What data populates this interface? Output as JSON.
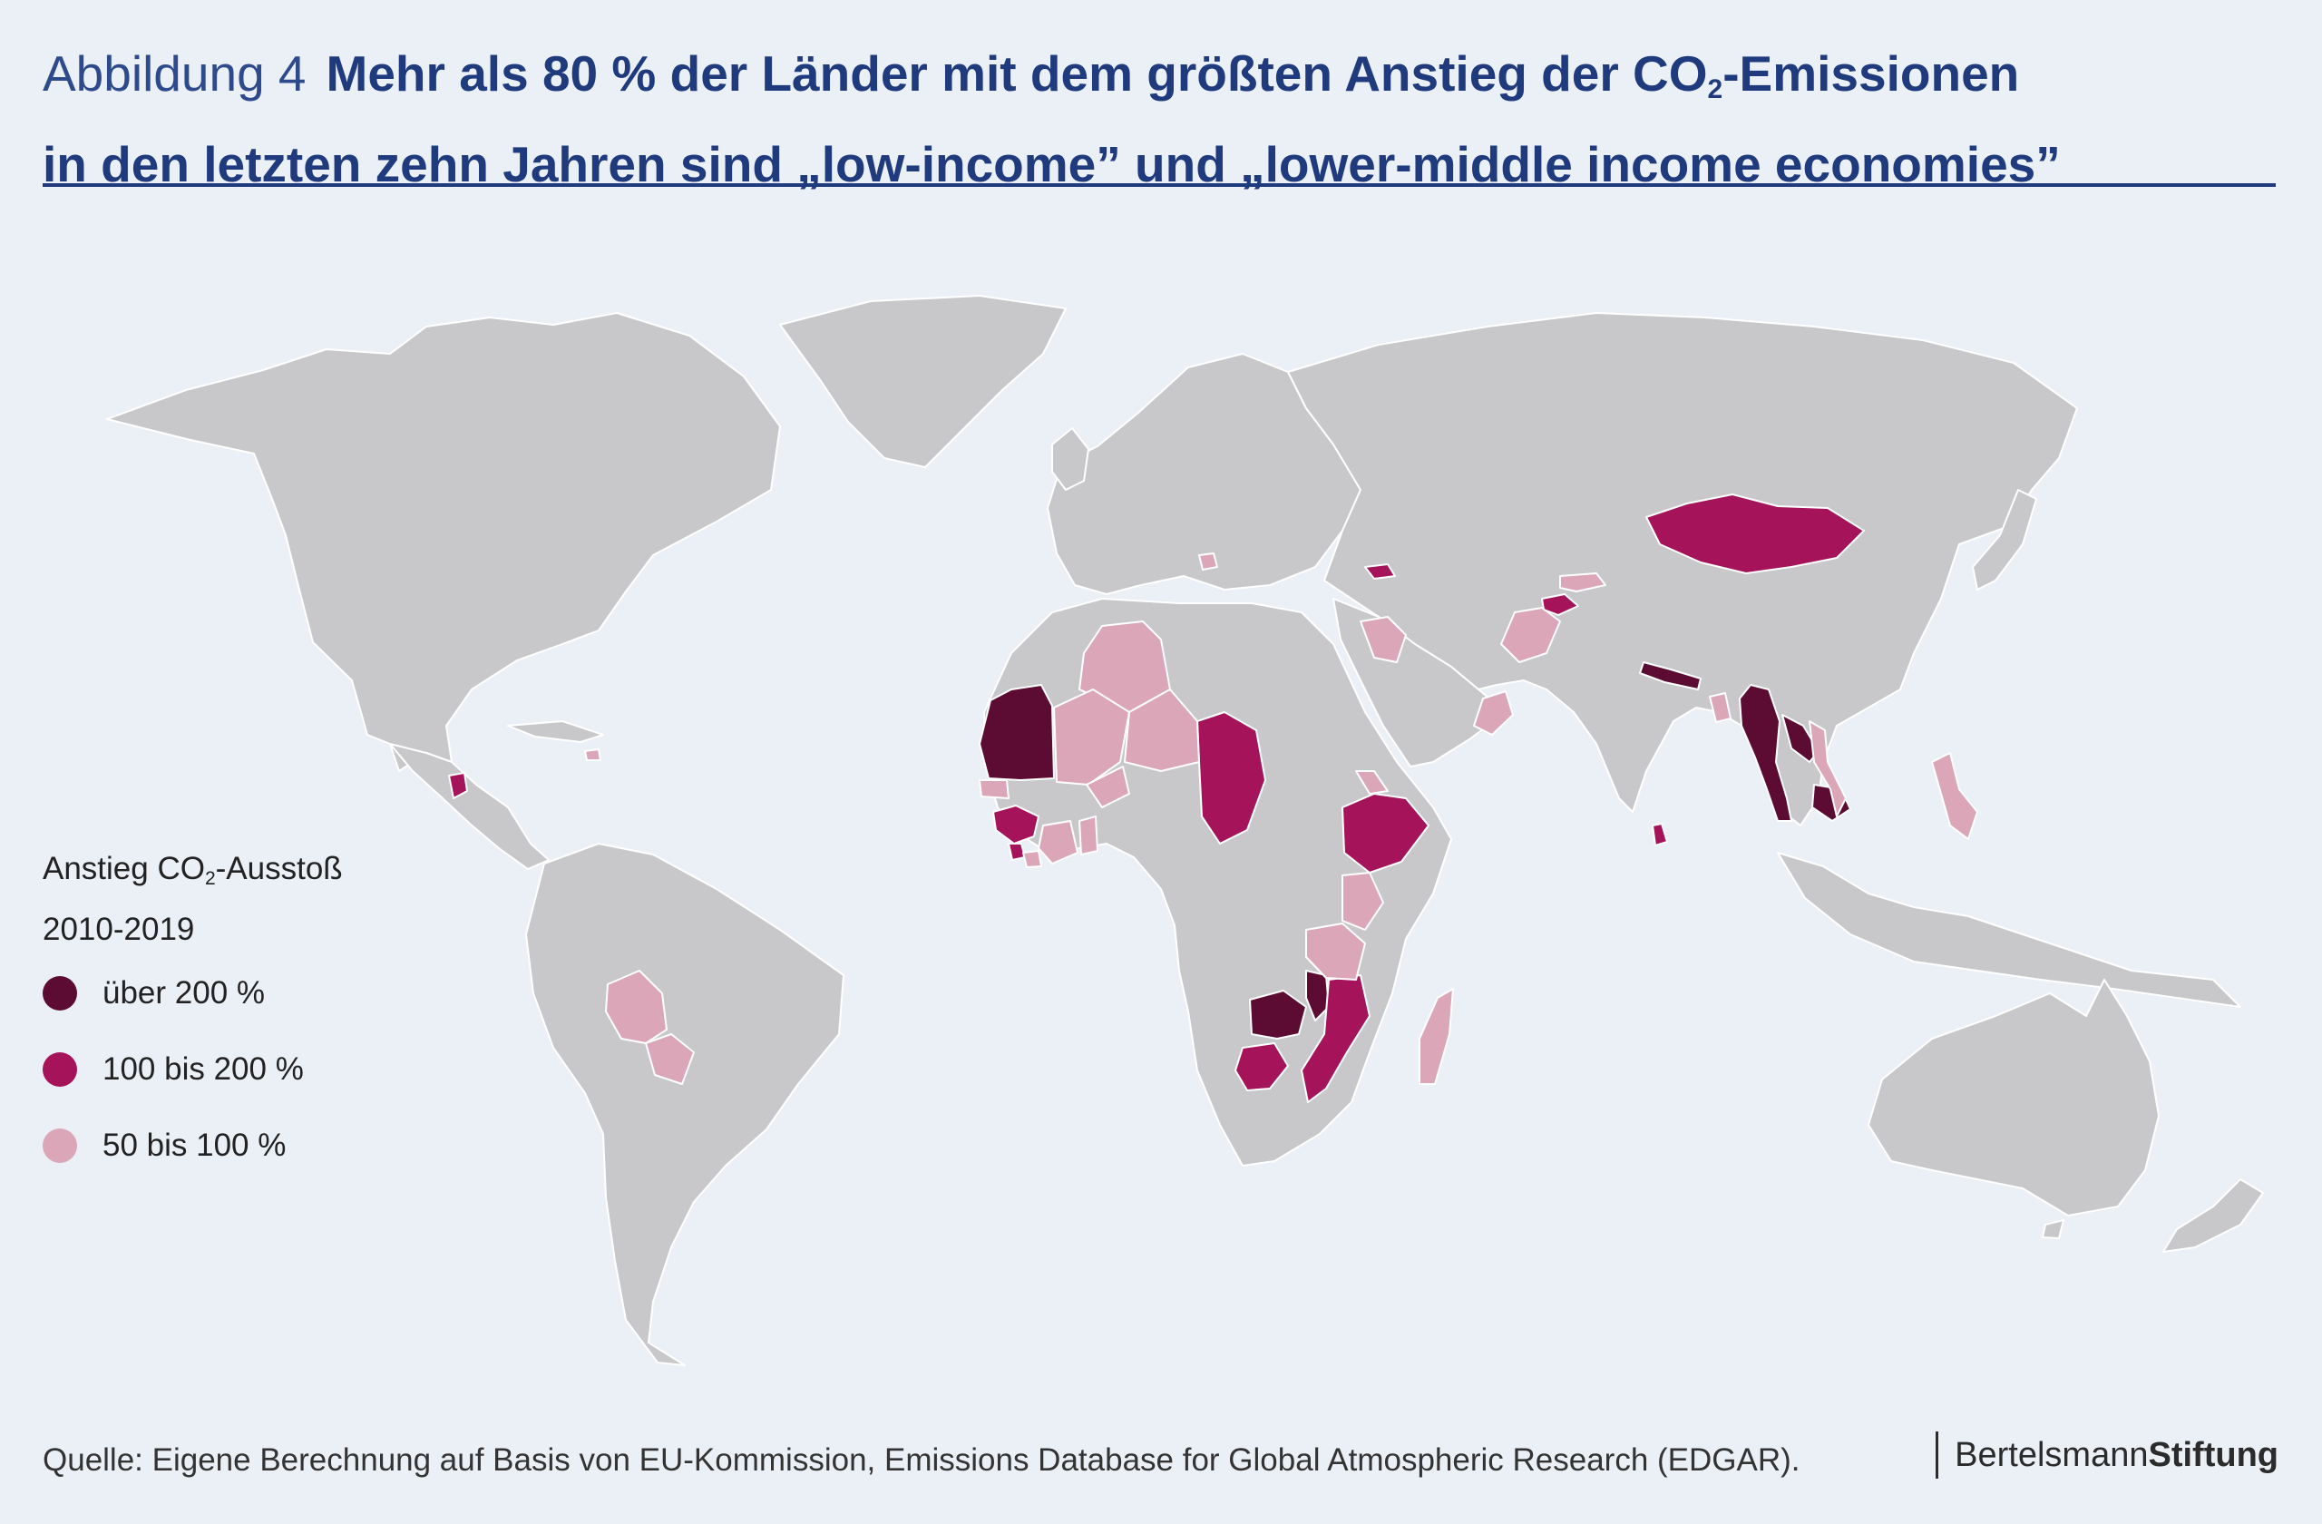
{
  "header": {
    "figure_label": "Abbildung 4",
    "title_line1_a": "Mehr als 80 % der Länder mit dem größten Anstieg der CO",
    "title_sub": "2",
    "title_line1_b": "-Emissionen",
    "title_line2": "in den letzten zehn Jahren sind „low-income” und „lower-middle income economies”"
  },
  "legend": {
    "title_a": "Anstieg CO",
    "title_sub": "2",
    "title_b": "-Ausstoß",
    "period": "2010-2019",
    "items": [
      {
        "label": "über 200 %",
        "color": "#5c0b33"
      },
      {
        "label": "100 bis 200 %",
        "color": "#a5135a"
      },
      {
        "label": "50 bis 100 %",
        "color": "#dba7b8"
      }
    ]
  },
  "map_data": {
    "base_color": "#c8c8ca",
    "categories": {
      "ueber_200": [
        "Mauritania",
        "Nepal",
        "Myanmar",
        "Cambodia",
        "Laos",
        "Zambia",
        "Malawi"
      ],
      "100_200": [
        "Mongolia",
        "Chad",
        "Ethiopia",
        "Guinea",
        "Sierra Leone",
        "Guatemala",
        "Georgia",
        "Tajikistan",
        "Zimbabwe",
        "Mozambique",
        "Sri Lanka"
      ],
      "50_100": [
        "Algeria",
        "Mali",
        "Niger",
        "Burkina Faso",
        "Senegal",
        "Côte d'Ivoire",
        "Ghana",
        "Kenya",
        "Tanzania",
        "Madagascar",
        "Bolivia",
        "Paraguay",
        "Afghanistan",
        "Iraq",
        "Oman",
        "Kyrgyzstan",
        "Philippines",
        "Vietnam",
        "Bangladesh",
        "Bosnia and Herzegovina",
        "Eritrea",
        "Liberia",
        "Dominican Republic"
      ]
    }
  },
  "footer": {
    "source": "Quelle: Eigene Berechnung auf Basis von EU-Kommission, Emissions Database for Global Atmospheric Research (EDGAR).",
    "brand_a": "Bertelsmann",
    "brand_b": "Stiftung"
  }
}
